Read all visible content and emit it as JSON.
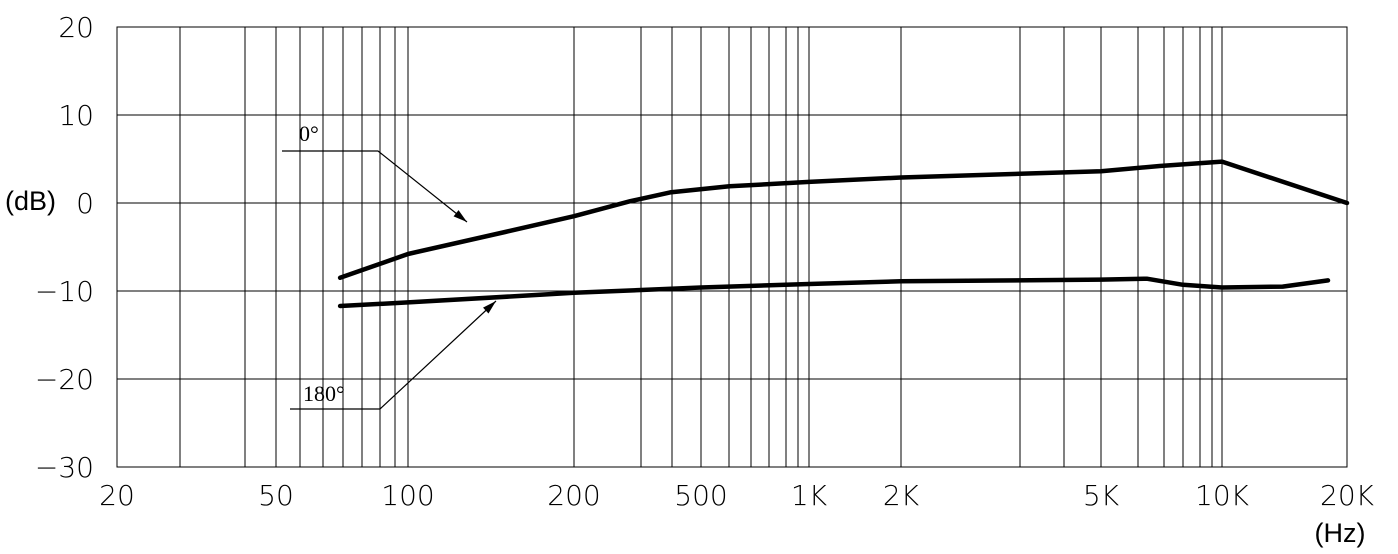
{
  "chart_data": {
    "type": "line",
    "x_tick_labels": [
      "20",
      "50",
      "100",
      "200",
      "500",
      "1K",
      "2K",
      "5K",
      "10K",
      "20K"
    ],
    "y_tick_labels": [
      "20",
      "10",
      "0",
      "−10",
      "−20",
      "−30"
    ],
    "ylim": [
      -30,
      20
    ],
    "ylabel": "(dB)",
    "xlabel": "(Hz)",
    "grid": true,
    "series": [
      {
        "name": "0°",
        "points": [
          [
            70,
            -8.5
          ],
          [
            100,
            -5.8
          ],
          [
            150,
            -3.3
          ],
          [
            200,
            -1.5
          ],
          [
            300,
            0.2
          ],
          [
            400,
            1.2
          ],
          [
            600,
            1.9
          ],
          [
            1000,
            2.4
          ],
          [
            2000,
            2.9
          ],
          [
            5000,
            3.6
          ],
          [
            7000,
            4.2
          ],
          [
            10000,
            4.7
          ],
          [
            20000,
            0.0
          ]
        ]
      },
      {
        "name": "180°",
        "points": [
          [
            70,
            -11.7
          ],
          [
            100,
            -11.3
          ],
          [
            200,
            -10.2
          ],
          [
            500,
            -9.6
          ],
          [
            1000,
            -9.2
          ],
          [
            2000,
            -8.9
          ],
          [
            5000,
            -8.7
          ],
          [
            6500,
            -8.6
          ],
          [
            8000,
            -9.3
          ],
          [
            10000,
            -9.6
          ],
          [
            14000,
            -9.5
          ],
          [
            18000,
            -8.8
          ]
        ]
      }
    ]
  }
}
